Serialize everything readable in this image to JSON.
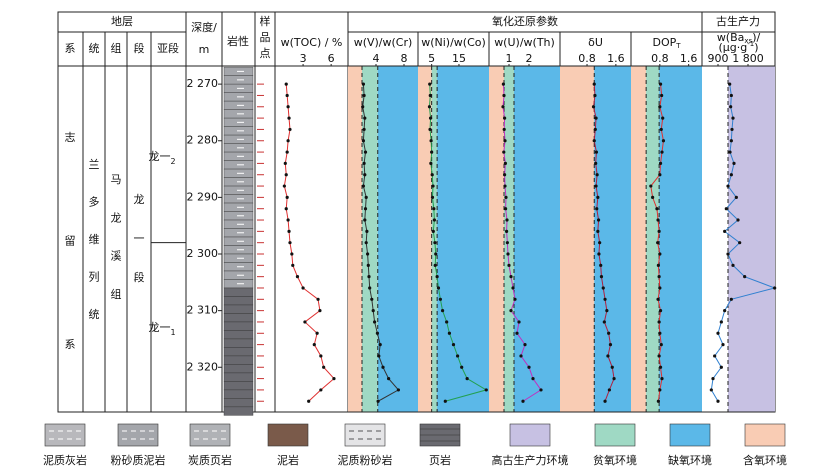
{
  "header": {
    "strata": "地层",
    "system_col": "系",
    "series_col": "统",
    "formation_col": "组",
    "member_col": "段",
    "submember_col": "亚段",
    "depth": [
      "深度/",
      "m"
    ],
    "lithology": "岩性",
    "samples": [
      "样",
      "品",
      "点"
    ],
    "redox": "氧化还原参数",
    "productivity": "古生产力"
  },
  "strat": {
    "system": "志留系",
    "series": "兰多维列统",
    "formation": "马龙溪组",
    "member": "龙一段",
    "sub_upper": {
      "text": "龙一",
      "sub": "2"
    },
    "sub_lower": {
      "text": "龙一",
      "sub": "1"
    },
    "sub_boundary": 2298
  },
  "depth_axis": {
    "ylim": [
      2266.8,
      2327.9
    ],
    "ticks": [
      {
        "value": 2270,
        "label": "2 270"
      },
      {
        "value": 2280,
        "label": "2 280"
      },
      {
        "value": 2290,
        "label": "2 290"
      },
      {
        "value": 2300,
        "label": "2 300"
      },
      {
        "value": 2310,
        "label": "2 310"
      },
      {
        "value": 2320,
        "label": "2 320"
      }
    ]
  },
  "depths": [
    2270,
    2272,
    2274,
    2276,
    2278,
    2280,
    2282,
    2284,
    2286,
    2288,
    2290,
    2292,
    2294,
    2296,
    2298,
    2300,
    2302,
    2304,
    2306,
    2308,
    2310,
    2312,
    2314,
    2316,
    2318,
    2320,
    2322,
    2324,
    2326
  ],
  "panels": [
    {
      "title": [
        [
          {
            "t": "w(TOC) / %"
          }
        ]
      ],
      "xlim": [
        0,
        7.8
      ],
      "xticks": [
        3,
        6
      ],
      "color": "#e03030",
      "zones": [],
      "values": [
        1.2,
        1.3,
        1.4,
        1.5,
        1.6,
        1.4,
        1.3,
        1.1,
        1.2,
        1.0,
        1.3,
        1.2,
        1.4,
        1.5,
        1.6,
        1.8,
        1.9,
        2.4,
        3.0,
        4.6,
        4.8,
        3.2,
        4.5,
        4.2,
        4.9,
        5.2,
        6.3,
        4.9,
        3.6
      ]
    },
    {
      "title": [
        [
          {
            "t": "w(V)/w(Cr)"
          }
        ]
      ],
      "xlim": [
        0,
        10
      ],
      "xticks": [
        4,
        8
      ],
      "color": "#333333",
      "zones": [
        {
          "from": 0,
          "to": 2,
          "color": "#f9ccb4"
        },
        {
          "from": 2,
          "to": 4.25,
          "color": "#9fd9c4"
        },
        {
          "from": 4.25,
          "to": 10,
          "color": "#5bb8e8"
        }
      ],
      "values": [
        2.2,
        2.3,
        2.1,
        2.4,
        2.3,
        2.2,
        2.5,
        2.3,
        2.4,
        2.2,
        2.6,
        2.5,
        2.4,
        2.7,
        2.6,
        2.8,
        2.9,
        3.0,
        3.1,
        3.4,
        3.6,
        3.8,
        4.2,
        4.6,
        4.4,
        5.0,
        5.8,
        7.2,
        4.3
      ]
    },
    {
      "title": [
        [
          {
            "t": "w(Ni)/w(Co)"
          }
        ]
      ],
      "xlim": [
        0,
        26
      ],
      "xticks": [
        5,
        15
      ],
      "color": "#22a050",
      "zones": [
        {
          "from": 0,
          "to": 5,
          "color": "#f9ccb4"
        },
        {
          "from": 5,
          "to": 7,
          "color": "#9fd9c4"
        },
        {
          "from": 7,
          "to": 26,
          "color": "#5bb8e8"
        }
      ],
      "values": [
        4.3,
        4.5,
        4.2,
        4.6,
        4.4,
        4.8,
        5.0,
        4.7,
        5.2,
        5.5,
        5.3,
        5.8,
        6.0,
        5.6,
        6.2,
        6.5,
        6.3,
        7.0,
        7.5,
        8.2,
        9.0,
        10.5,
        11.5,
        13.0,
        14.5,
        16.0,
        18.0,
        25.0,
        10.0
      ]
    },
    {
      "title": [
        [
          {
            "t": "w(U)/w(Th)"
          }
        ]
      ],
      "xlim": [
        0,
        3.55
      ],
      "xticks": [
        1,
        2
      ],
      "color": "#c030c0",
      "zones": [
        {
          "from": 0,
          "to": 0.75,
          "color": "#f9ccb4"
        },
        {
          "from": 0.75,
          "to": 1.25,
          "color": "#9fd9c4"
        },
        {
          "from": 1.25,
          "to": 3.55,
          "color": "#5bb8e8"
        }
      ],
      "values": [
        0.72,
        0.75,
        0.7,
        0.78,
        0.76,
        0.8,
        0.74,
        0.82,
        0.78,
        0.8,
        0.85,
        0.83,
        0.9,
        0.88,
        0.92,
        0.95,
        1.0,
        1.1,
        1.2,
        1.3,
        1.1,
        1.5,
        1.4,
        1.8,
        1.6,
        2.0,
        2.2,
        2.6,
        1.7
      ]
    },
    {
      "title": [
        [
          {
            "t": "δU"
          }
        ]
      ],
      "xlim": [
        0.05,
        2.02
      ],
      "xticks": [
        0.8,
        1.6
      ],
      "color": "#b02040",
      "zones": [
        {
          "from": 0.05,
          "to": 1,
          "color": "#f9ccb4"
        },
        {
          "from": 1,
          "to": 2.02,
          "color": "#5bb8e8"
        }
      ],
      "values": [
        1.0,
        1.02,
        0.98,
        1.05,
        1.03,
        1.0,
        1.06,
        1.04,
        1.08,
        1.05,
        1.1,
        1.07,
        1.12,
        1.1,
        1.15,
        1.13,
        1.18,
        1.2,
        1.25,
        1.3,
        1.35,
        1.28,
        1.4,
        1.45,
        1.38,
        1.5,
        1.55,
        1.42,
        1.3
      ]
    },
    {
      "title": [
        [
          {
            "t": "DOP"
          },
          {
            "t": "T",
            "s": "sub"
          }
        ]
      ],
      "xlim": [
        0,
        1.97
      ],
      "xticks": [
        0.8,
        1.6
      ],
      "color": "#e03030",
      "zones": [
        {
          "from": 0,
          "to": 0.42,
          "color": "#f9ccb4"
        },
        {
          "from": 0.42,
          "to": 0.78,
          "color": "#9fd9c4"
        },
        {
          "from": 0.78,
          "to": 1.97,
          "color": "#5bb8e8"
        }
      ],
      "values": [
        0.82,
        0.85,
        0.8,
        0.88,
        0.84,
        0.9,
        0.86,
        0.82,
        0.8,
        0.55,
        0.6,
        0.72,
        0.75,
        0.78,
        0.74,
        0.8,
        0.76,
        0.78,
        0.8,
        0.75,
        0.82,
        0.78,
        0.8,
        0.84,
        0.78,
        0.82,
        0.86,
        0.8,
        0.76
      ]
    },
    {
      "title": [
        [
          {
            "t": "w(Ba"
          },
          {
            "t": "xs",
            "s": "sub"
          },
          {
            "t": ")/"
          }
        ],
        [
          {
            "t": "(μg·g"
          },
          {
            "t": "-1",
            "s": "sup"
          },
          {
            "t": ")"
          }
        ]
      ],
      "xlim": [
        420,
        2610
      ],
      "xticks": [
        900,
        {
          "value": 1800,
          "label": "1 800"
        }
      ],
      "color": "#3080d0",
      "zones": [
        {
          "from": 420,
          "to": 1200,
          "color": "#ffffff"
        },
        {
          "from": 1200,
          "to": 2610,
          "color": "#c7c1e3"
        }
      ],
      "values": [
        1250,
        1300,
        1280,
        1350,
        1320,
        1300,
        1260,
        1380,
        1300,
        1200,
        1450,
        1150,
        1500,
        1100,
        1550,
        1200,
        1350,
        1700,
        2600,
        1300,
        1100,
        1000,
        900,
        1050,
        800,
        1000,
        750,
        700,
        900
      ]
    }
  ],
  "legend": [
    {
      "label": "泥质灰岩",
      "pattern": "limestone"
    },
    {
      "label": "粉砂质泥岩",
      "pattern": "silty"
    },
    {
      "label": "炭质页岩",
      "pattern": "carbon"
    },
    {
      "label": "泥岩",
      "pattern": "mud"
    },
    {
      "label": "泥质粉砂岩",
      "pattern": "siltstone"
    },
    {
      "label": "页岩",
      "pattern": "shale"
    },
    {
      "label": "高古生产力环境",
      "color": "#c7c1e3"
    },
    {
      "label": "贫氧环境",
      "color": "#9fd9c4"
    },
    {
      "label": "缺氧环境",
      "color": "#5bb8e8"
    },
    {
      "label": "含氧环境",
      "color": "#f9ccb4"
    }
  ]
}
